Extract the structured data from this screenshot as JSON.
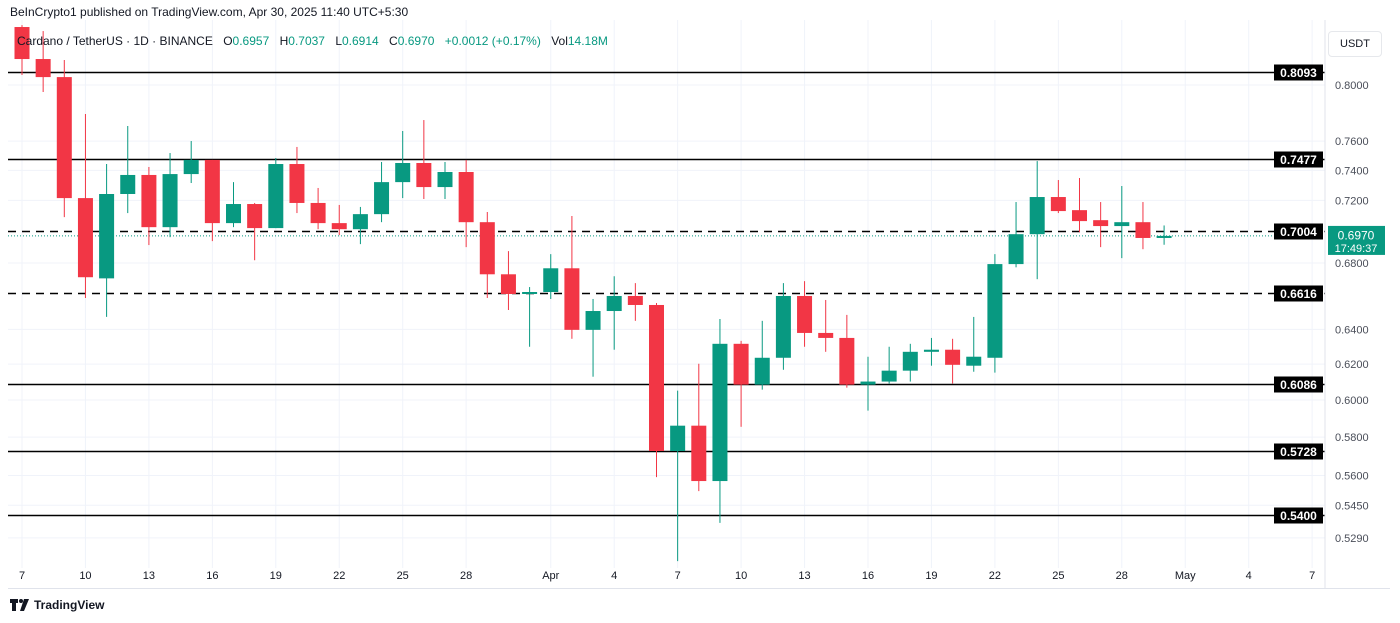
{
  "header": {
    "published": "BeInCrypto1 published on TradingView.com, Apr 30, 2025 11:40 UTC+5:30",
    "symbol": "Cardano / TetherUS · 1D · BINANCE",
    "open_label": "O",
    "open": "0.6957",
    "high_label": "H",
    "high": "0.7037",
    "low_label": "L",
    "low": "0.6914",
    "close_label": "C",
    "close": "0.6970",
    "change": "+0.0012 (+0.17%)",
    "vol_label": "Vol",
    "vol": "14.18M"
  },
  "currency_button": "USDT",
  "footer": {
    "logo_text": "TradingView"
  },
  "colors": {
    "up": "#089981",
    "down": "#F23645",
    "level": "#000000",
    "grid": "#f0f3fa"
  },
  "chart_data": {
    "type": "candlestick",
    "y_scale": "log",
    "ylim": [
      0.518,
      0.845
    ],
    "grid": true,
    "y_ticks": [
      "0.8000",
      "0.7600",
      "0.7400",
      "0.7200",
      "0.6800",
      "0.6400",
      "0.6200",
      "0.6000",
      "0.5800",
      "0.5600",
      "0.5450",
      "0.5290"
    ],
    "x_ticks": [
      {
        "date": "2025-03-07",
        "label": "7"
      },
      {
        "date": "2025-03-10",
        "label": "10"
      },
      {
        "date": "2025-03-13",
        "label": "13"
      },
      {
        "date": "2025-03-16",
        "label": "16"
      },
      {
        "date": "2025-03-19",
        "label": "19"
      },
      {
        "date": "2025-03-22",
        "label": "22"
      },
      {
        "date": "2025-03-25",
        "label": "25"
      },
      {
        "date": "2025-03-28",
        "label": "28"
      },
      {
        "date": "2025-04-01",
        "label": "Apr"
      },
      {
        "date": "2025-04-04",
        "label": "4"
      },
      {
        "date": "2025-04-07",
        "label": "7"
      },
      {
        "date": "2025-04-10",
        "label": "10"
      },
      {
        "date": "2025-04-13",
        "label": "13"
      },
      {
        "date": "2025-04-16",
        "label": "16"
      },
      {
        "date": "2025-04-19",
        "label": "19"
      },
      {
        "date": "2025-04-22",
        "label": "22"
      },
      {
        "date": "2025-04-25",
        "label": "25"
      },
      {
        "date": "2025-04-28",
        "label": "28"
      },
      {
        "date": "2025-05-01",
        "label": "May"
      },
      {
        "date": "2025-05-04",
        "label": "4"
      },
      {
        "date": "2025-05-07",
        "label": "7"
      }
    ],
    "levels": [
      {
        "price": 0.8093,
        "label": "0.8093",
        "style": "solid"
      },
      {
        "price": 0.7477,
        "label": "0.7477",
        "style": "solid"
      },
      {
        "price": 0.7004,
        "label": "0.7004",
        "style": "dashed"
      },
      {
        "price": 0.6616,
        "label": "0.6616",
        "style": "dashed"
      },
      {
        "price": 0.6086,
        "label": "0.6086",
        "style": "solid"
      },
      {
        "price": 0.5728,
        "label": "0.5728",
        "style": "solid"
      },
      {
        "price": 0.54,
        "label": "0.5400",
        "style": "solid"
      }
    ],
    "last_price": {
      "price": 0.697,
      "label": "0.6970",
      "countdown": "17:49:37"
    },
    "candles": [
      {
        "d": "2025-03-07",
        "o": 0.8435,
        "h": 0.845,
        "l": 0.8073,
        "c": 0.8192
      },
      {
        "d": "2025-03-08",
        "o": 0.8192,
        "h": 0.8404,
        "l": 0.7949,
        "c": 0.8058
      },
      {
        "d": "2025-03-09",
        "o": 0.8058,
        "h": 0.8185,
        "l": 0.7091,
        "c": 0.7215
      },
      {
        "d": "2025-03-10",
        "o": 0.7215,
        "h": 0.7791,
        "l": 0.6586,
        "c": 0.6712
      },
      {
        "d": "2025-03-11",
        "o": 0.6705,
        "h": 0.7443,
        "l": 0.6473,
        "c": 0.7242
      },
      {
        "d": "2025-03-12",
        "o": 0.7242,
        "h": 0.7706,
        "l": 0.7117,
        "c": 0.7369
      },
      {
        "d": "2025-03-13",
        "o": 0.7369,
        "h": 0.7423,
        "l": 0.6912,
        "c": 0.7026
      },
      {
        "d": "2025-03-14",
        "o": 0.7026,
        "h": 0.7518,
        "l": 0.6962,
        "c": 0.7375
      },
      {
        "d": "2025-03-15",
        "o": 0.7375,
        "h": 0.7601,
        "l": 0.7315,
        "c": 0.7471
      },
      {
        "d": "2025-03-16",
        "o": 0.7471,
        "h": 0.7471,
        "l": 0.6937,
        "c": 0.7052
      },
      {
        "d": "2025-03-17",
        "o": 0.7052,
        "h": 0.7321,
        "l": 0.7026,
        "c": 0.7176
      },
      {
        "d": "2025-03-18",
        "o": 0.7176,
        "h": 0.7183,
        "l": 0.6817,
        "c": 0.702
      },
      {
        "d": "2025-03-19",
        "o": 0.702,
        "h": 0.7484,
        "l": 0.702,
        "c": 0.7443
      },
      {
        "d": "2025-03-20",
        "o": 0.7443,
        "h": 0.756,
        "l": 0.7117,
        "c": 0.7183
      },
      {
        "d": "2025-03-21",
        "o": 0.7183,
        "h": 0.7282,
        "l": 0.7013,
        "c": 0.7052
      },
      {
        "d": "2025-03-22",
        "o": 0.7052,
        "h": 0.717,
        "l": 0.6975,
        "c": 0.7013
      },
      {
        "d": "2025-03-23",
        "o": 0.7013,
        "h": 0.7157,
        "l": 0.6918,
        "c": 0.711
      },
      {
        "d": "2025-03-24",
        "o": 0.711,
        "h": 0.7457,
        "l": 0.7058,
        "c": 0.7321
      },
      {
        "d": "2025-03-25",
        "o": 0.7321,
        "h": 0.7671,
        "l": 0.7215,
        "c": 0.745
      },
      {
        "d": "2025-03-26",
        "o": 0.745,
        "h": 0.7748,
        "l": 0.7209,
        "c": 0.7288
      },
      {
        "d": "2025-03-27",
        "o": 0.7288,
        "h": 0.7457,
        "l": 0.7209,
        "c": 0.7389
      },
      {
        "d": "2025-03-28",
        "o": 0.7389,
        "h": 0.7471,
        "l": 0.6899,
        "c": 0.7058
      },
      {
        "d": "2025-03-29",
        "o": 0.7058,
        "h": 0.7124,
        "l": 0.6586,
        "c": 0.673
      },
      {
        "d": "2025-03-30",
        "o": 0.673,
        "h": 0.6874,
        "l": 0.6514,
        "c": 0.661
      },
      {
        "d": "2025-03-31",
        "o": 0.661,
        "h": 0.6652,
        "l": 0.6299,
        "c": 0.6622
      },
      {
        "d": "2025-04-01",
        "o": 0.6622,
        "h": 0.6855,
        "l": 0.658,
        "c": 0.6767
      },
      {
        "d": "2025-04-02",
        "o": 0.6767,
        "h": 0.7098,
        "l": 0.6345,
        "c": 0.6397
      },
      {
        "d": "2025-04-03",
        "o": 0.6397,
        "h": 0.658,
        "l": 0.6129,
        "c": 0.6508
      },
      {
        "d": "2025-04-04",
        "o": 0.6508,
        "h": 0.6718,
        "l": 0.6282,
        "c": 0.6598
      },
      {
        "d": "2025-04-05",
        "o": 0.6598,
        "h": 0.6676,
        "l": 0.645,
        "c": 0.6544
      },
      {
        "d": "2025-04-06",
        "o": 0.6544,
        "h": 0.6556,
        "l": 0.5592,
        "c": 0.5727
      },
      {
        "d": "2025-04-07",
        "o": 0.5727,
        "h": 0.6052,
        "l": 0.5179,
        "c": 0.5861
      },
      {
        "d": "2025-04-08",
        "o": 0.5861,
        "h": 0.6202,
        "l": 0.5521,
        "c": 0.5572
      },
      {
        "d": "2025-04-09",
        "o": 0.5572,
        "h": 0.6461,
        "l": 0.5363,
        "c": 0.6316
      },
      {
        "d": "2025-04-10",
        "o": 0.6316,
        "h": 0.6333,
        "l": 0.5855,
        "c": 0.6085
      },
      {
        "d": "2025-04-11",
        "o": 0.6085,
        "h": 0.645,
        "l": 0.6057,
        "c": 0.6236
      },
      {
        "d": "2025-04-12",
        "o": 0.6236,
        "h": 0.6676,
        "l": 0.6168,
        "c": 0.6598
      },
      {
        "d": "2025-04-13",
        "o": 0.6598,
        "h": 0.6688,
        "l": 0.6299,
        "c": 0.6379
      },
      {
        "d": "2025-04-14",
        "o": 0.6379,
        "h": 0.6574,
        "l": 0.627,
        "c": 0.635
      },
      {
        "d": "2025-04-15",
        "o": 0.635,
        "h": 0.6485,
        "l": 0.6068,
        "c": 0.6085
      },
      {
        "d": "2025-04-16",
        "o": 0.6085,
        "h": 0.6242,
        "l": 0.5942,
        "c": 0.6102
      },
      {
        "d": "2025-04-17",
        "o": 0.6102,
        "h": 0.6299,
        "l": 0.6091,
        "c": 0.6163
      },
      {
        "d": "2025-04-18",
        "o": 0.6163,
        "h": 0.6316,
        "l": 0.6102,
        "c": 0.627
      },
      {
        "d": "2025-04-19",
        "o": 0.627,
        "h": 0.635,
        "l": 0.6191,
        "c": 0.6282
      },
      {
        "d": "2025-04-20",
        "o": 0.6282,
        "h": 0.6345,
        "l": 0.6091,
        "c": 0.6196
      },
      {
        "d": "2025-04-21",
        "o": 0.6191,
        "h": 0.6473,
        "l": 0.6157,
        "c": 0.6242
      },
      {
        "d": "2025-04-22",
        "o": 0.6236,
        "h": 0.6855,
        "l": 0.6152,
        "c": 0.6793
      },
      {
        "d": "2025-04-23",
        "o": 0.6793,
        "h": 0.7189,
        "l": 0.6773,
        "c": 0.6981
      },
      {
        "d": "2025-04-24",
        "o": 0.6981,
        "h": 0.7463,
        "l": 0.67,
        "c": 0.7222
      },
      {
        "d": "2025-04-25",
        "o": 0.7222,
        "h": 0.7335,
        "l": 0.7117,
        "c": 0.713
      },
      {
        "d": "2025-04-26",
        "o": 0.7136,
        "h": 0.7349,
        "l": 0.6994,
        "c": 0.7065
      },
      {
        "d": "2025-04-27",
        "o": 0.7071,
        "h": 0.7189,
        "l": 0.6899,
        "c": 0.7033
      },
      {
        "d": "2025-04-28",
        "o": 0.7033,
        "h": 0.7295,
        "l": 0.683,
        "c": 0.7058
      },
      {
        "d": "2025-04-29",
        "o": 0.7058,
        "h": 0.7189,
        "l": 0.6886,
        "c": 0.6957
      },
      {
        "d": "2025-04-30",
        "o": 0.6957,
        "h": 0.7037,
        "l": 0.6914,
        "c": 0.697
      }
    ]
  }
}
